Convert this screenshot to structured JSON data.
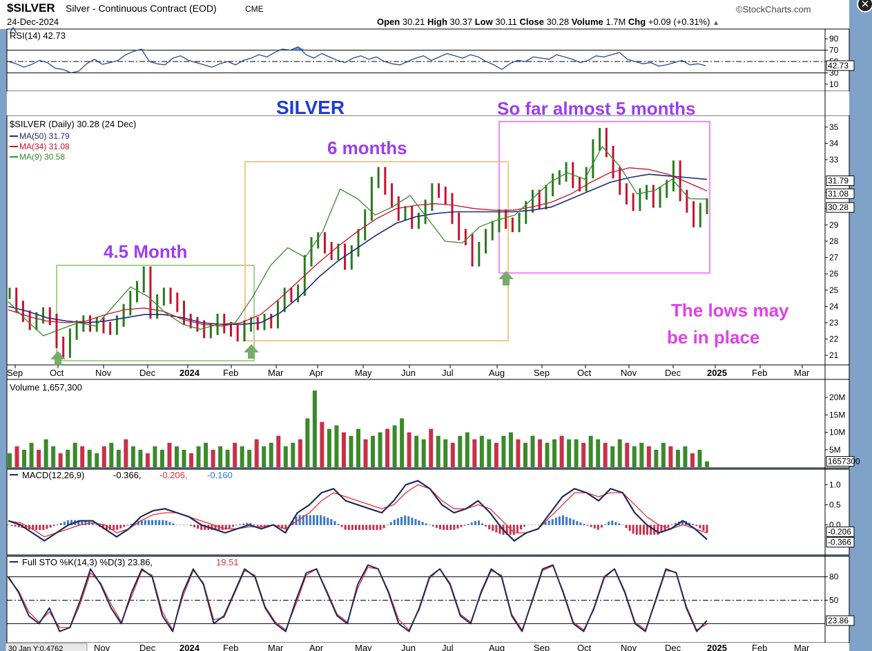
{
  "header": {
    "symbol": "$SILVER",
    "name": "Silver - Continuous Contract (EOD)",
    "exchange": "CME",
    "copyright": "©StockCharts.com",
    "date": "24-Dec-2024",
    "open_label": "Open",
    "open": "30.21",
    "high_label": "High",
    "high": "30.37",
    "low_label": "Low",
    "low": "30.11",
    "close_label": "Close",
    "close": "30.28",
    "volume_label": "Volume",
    "volume": "1.7M",
    "chg_label": "Chg",
    "chg": "+0.09 (+0.31%)",
    "chg_arrow": "▲",
    "close_button": "✕"
  },
  "colors": {
    "price_up": "#2a7a1c",
    "price_down": "#c8102e",
    "ma50": "#1f2a7a",
    "ma34": "#c8102e",
    "ma9": "#3a8a2a",
    "volume_up": "#3a8a2a",
    "volume_down": "#c8304a",
    "macd_line": "#1f2a5a",
    "macd_signal": "#e0303a",
    "histogram": "#3a78c8",
    "annotation_text": "#9b3df0",
    "title_text": "#1e3cd8",
    "pink_box": "#f08cf0",
    "orange_box": "#f0c890",
    "green_box": "#a8d090"
  },
  "chart_data": [
    {
      "type": "line",
      "title": "RSI(14) 42.73",
      "legend": [
        {
          "text": "RSI(14) 42.73"
        }
      ],
      "ylim": [
        0,
        100
      ],
      "y_ticks": [
        "90",
        "70",
        "50",
        "30",
        "10"
      ],
      "last_value_label": "42.73",
      "reference_lines": [
        70,
        50,
        30
      ],
      "series": [
        {
          "name": "RSI(14)",
          "values": [
            50,
            46,
            40,
            45,
            52,
            48,
            38,
            36,
            30,
            33,
            46,
            54,
            45,
            48,
            52,
            62,
            68,
            72,
            50,
            46,
            44,
            56,
            60,
            52,
            48,
            44,
            40,
            46,
            50,
            44,
            52,
            56,
            62,
            58,
            66,
            72,
            70,
            76,
            62,
            56,
            64,
            58,
            52,
            48,
            56,
            60,
            54,
            58,
            50,
            46,
            44,
            50,
            56,
            60,
            52,
            58,
            64,
            60,
            56,
            62,
            58,
            50,
            44,
            36,
            46,
            52,
            50,
            58,
            56,
            54,
            62,
            58,
            54,
            48,
            52,
            60,
            58,
            62,
            66,
            54,
            50,
            46,
            48,
            42,
            44,
            48,
            52,
            44,
            46,
            42.73
          ]
        }
      ]
    },
    {
      "type": "line",
      "title": "$SILVER (Daily) 30.28 (24 Dec)",
      "legend": [
        {
          "text": "$SILVER (Daily) 30.28 (24 Dec)"
        },
        {
          "text": "MA(50) 31.79"
        },
        {
          "text": "MA(34) 31.08"
        },
        {
          "text": "MA(9) 30.58"
        }
      ],
      "x_ticks": [
        "Sep",
        "Oct",
        "Nov",
        "Dec",
        "2024",
        "Feb",
        "Mar",
        "Apr",
        "May",
        "Jun",
        "Jul",
        "Aug",
        "Sep",
        "Oct",
        "Nov",
        "Dec",
        "2025",
        "Feb",
        "Mar"
      ],
      "ylim": [
        20.5,
        35.5
      ],
      "y_ticks": [
        "35",
        "34",
        "33",
        "31",
        "30",
        "29",
        "28",
        "27",
        "26",
        "25",
        "24",
        "23",
        "22",
        "21"
      ],
      "last_value_labels": [
        "31.79",
        "31.08",
        "30.28"
      ],
      "series": [
        {
          "name": "$SILVER (Daily)",
          "values": [
            24.8,
            24.0,
            23.4,
            22.9,
            23.3,
            23.6,
            23.2,
            21.8,
            21.2,
            22.3,
            22.8,
            23.1,
            22.8,
            23.0,
            22.7,
            22.6,
            23.1,
            23.8,
            24.6,
            25.2,
            26.1,
            23.6,
            24.4,
            24.8,
            24.5,
            24.0,
            23.2,
            23.0,
            22.8,
            22.4,
            22.6,
            23.2,
            22.7,
            22.5,
            22.2,
            22.8,
            23.0,
            22.9,
            23.2,
            23.0,
            24.0,
            24.8,
            24.6,
            25.0,
            26.8,
            27.9,
            28.2,
            27.6,
            27.2,
            27.5,
            26.6,
            27.4,
            28.4,
            29.6,
            31.6,
            32.2,
            31.2,
            30.4,
            29.6,
            29.8,
            29.1,
            29.4,
            30.2,
            31.2,
            31.0,
            30.6,
            29.4,
            28.4,
            28.1,
            26.8,
            27.6,
            28.4,
            28.9,
            29.6,
            29.1,
            28.9,
            29.4,
            30.1,
            30.8,
            30.3,
            31.1,
            31.8,
            32.0,
            32.5,
            31.6,
            31.4,
            32.2,
            33.9,
            34.6,
            33.5,
            32.2,
            31.2,
            30.6,
            30.2,
            30.9,
            31.1,
            30.4,
            31.0,
            31.4,
            32.6,
            30.8,
            30.1,
            29.2,
            30.0,
            30.28
          ]
        },
        {
          "name": "MA(50)",
          "values": [
            24.0,
            23.7,
            23.3,
            23.1,
            23.0,
            23.1,
            23.3,
            23.5,
            23.5,
            23.3,
            23.0,
            22.9,
            22.9,
            23.0,
            23.6,
            24.6,
            25.8,
            26.8,
            27.6,
            28.4,
            29.1,
            29.5,
            29.7,
            29.8,
            29.8,
            29.8,
            29.8,
            29.9,
            30.1,
            30.6,
            31.1,
            31.6,
            31.9,
            32.1,
            32.0,
            31.9,
            31.79
          ]
        },
        {
          "name": "MA(34)",
          "values": [
            23.8,
            23.4,
            23.1,
            23.0,
            23.1,
            23.5,
            23.8,
            23.9,
            23.7,
            23.2,
            22.9,
            22.8,
            23.0,
            23.5,
            24.5,
            25.6,
            26.7,
            27.7,
            28.6,
            29.4,
            30.0,
            30.2,
            30.3,
            30.2,
            30.0,
            29.9,
            29.9,
            30.1,
            30.4,
            30.9,
            31.6,
            32.2,
            32.5,
            32.4,
            32.1,
            31.6,
            31.08
          ]
        },
        {
          "name": "MA(9)",
          "values": [
            24.3,
            23.2,
            22.2,
            22.6,
            23.0,
            22.8,
            24.0,
            25.2,
            24.6,
            23.6,
            22.9,
            22.6,
            22.9,
            23.0,
            24.6,
            26.5,
            27.6,
            27.0,
            28.6,
            31.2,
            30.6,
            29.6,
            30.1,
            30.8,
            29.4,
            28.0,
            27.9,
            28.9,
            29.3,
            29.6,
            30.6,
            31.6,
            32.2,
            31.8,
            33.8,
            32.6,
            30.9,
            31.1,
            31.8,
            30.6,
            30.58
          ]
        }
      ],
      "annotations": [
        {
          "text": "SILVER"
        },
        {
          "text": "6 months"
        },
        {
          "text": "So far almost 5 months"
        },
        {
          "text": "4.5 Month"
        },
        {
          "text": "The lows may"
        },
        {
          "text": "be in place"
        }
      ]
    },
    {
      "type": "bar",
      "title": "Volume 1,657,300",
      "legend": [
        {
          "text": "Volume 1,657,300"
        }
      ],
      "y_ticks": [
        "20M",
        "15M",
        "10M",
        "5M"
      ],
      "last_value_label": "1657300",
      "values_m": [
        4,
        6,
        5,
        7,
        5,
        8,
        6,
        4,
        5,
        7,
        6,
        5,
        4,
        6,
        7,
        5,
        8,
        6,
        5,
        4,
        6,
        5,
        7,
        6,
        5,
        4,
        6,
        7,
        5,
        6,
        5,
        7,
        6,
        5,
        8,
        6,
        7,
        9,
        6,
        7,
        8,
        14,
        22,
        13,
        11,
        12,
        10,
        9,
        11,
        8,
        9,
        10,
        11,
        12,
        14,
        10,
        9,
        8,
        11,
        9,
        8,
        7,
        9,
        10,
        8,
        9,
        8,
        7,
        9,
        10,
        8,
        7,
        9,
        8,
        7,
        8,
        9,
        8,
        8,
        7,
        9,
        8,
        7,
        6,
        8,
        7,
        6,
        7,
        6,
        5,
        7,
        6,
        5,
        6,
        4,
        5,
        1.66
      ]
    },
    {
      "type": "line",
      "title": "MACD(12,26,9) -0.366, -0.206, -0.160",
      "legend": [
        {
          "text": "MACD(12,26,9)"
        },
        {
          "text": "-0.366,"
        },
        {
          "text": "-0.206,"
        },
        {
          "text": "-0.160"
        }
      ],
      "ylim": [
        -0.7,
        1.3
      ],
      "y_ticks": [
        "1.0",
        "0.5",
        "0.0"
      ],
      "last_value_labels": [
        "-0.206",
        "-0.366"
      ],
      "series": [
        {
          "name": "MACD",
          "values": [
            0.1,
            0.0,
            -0.2,
            -0.4,
            -0.2,
            0.0,
            0.1,
            0.1,
            -0.1,
            -0.3,
            -0.1,
            0.2,
            0.35,
            0.4,
            0.3,
            0.2,
            0.0,
            -0.1,
            -0.2,
            -0.1,
            0.0,
            -0.1,
            0.0,
            -0.2,
            0.3,
            0.5,
            0.8,
            0.9,
            0.6,
            0.5,
            0.4,
            0.3,
            0.6,
            1.0,
            1.1,
            0.9,
            0.5,
            0.3,
            0.4,
            0.6,
            0.3,
            -0.1,
            -0.4,
            -0.2,
            -0.1,
            0.3,
            0.7,
            0.9,
            0.8,
            0.6,
            0.9,
            0.8,
            0.3,
            0.0,
            -0.2,
            -0.1,
            0.1,
            -0.1,
            -0.366
          ]
        },
        {
          "name": "Signal",
          "values": [
            0.1,
            0.05,
            -0.1,
            -0.3,
            -0.2,
            -0.1,
            0.0,
            0.05,
            0.0,
            -0.2,
            -0.1,
            0.1,
            0.25,
            0.3,
            0.3,
            0.2,
            0.1,
            0.0,
            -0.1,
            -0.1,
            -0.05,
            -0.05,
            0.0,
            -0.1,
            0.1,
            0.3,
            0.6,
            0.8,
            0.7,
            0.6,
            0.5,
            0.4,
            0.5,
            0.8,
            1.0,
            0.9,
            0.6,
            0.4,
            0.4,
            0.5,
            0.4,
            0.1,
            -0.2,
            -0.2,
            -0.1,
            0.2,
            0.5,
            0.8,
            0.8,
            0.7,
            0.8,
            0.8,
            0.5,
            0.2,
            0.0,
            -0.1,
            0.0,
            -0.1,
            -0.206
          ]
        }
      ]
    },
    {
      "type": "line",
      "title": "Full STO %K(14,3) %D(3) 23.86, 19.51",
      "legend": [
        {
          "text": "Full STO %K(14,3) %D(3) 23.86,"
        },
        {
          "text": "19.51"
        }
      ],
      "ylim": [
        0,
        100
      ],
      "y_ticks": [
        "80",
        "50"
      ],
      "reference_lines": [
        80,
        50,
        20
      ],
      "last_value_label": "23.86",
      "x_ticks": [
        "Nov",
        "Dec",
        "2024",
        "Feb",
        "Mar",
        "Apr",
        "May",
        "Jun",
        "Jul",
        "Aug",
        "Sep",
        "Oct",
        "Nov",
        "Dec",
        "2025",
        "Feb",
        "Mar"
      ],
      "cursor_readout": "30 Jan Y:0.4762",
      "series": [
        {
          "name": "%K",
          "values": [
            80,
            60,
            30,
            20,
            40,
            10,
            15,
            50,
            90,
            70,
            40,
            20,
            60,
            90,
            80,
            30,
            10,
            60,
            90,
            70,
            20,
            30,
            60,
            90,
            80,
            40,
            20,
            10,
            50,
            85,
            90,
            60,
            30,
            20,
            70,
            95,
            90,
            60,
            20,
            10,
            40,
            80,
            90,
            70,
            30,
            20,
            60,
            90,
            80,
            30,
            10,
            50,
            90,
            95,
            60,
            20,
            10,
            40,
            80,
            90,
            60,
            20,
            10,
            50,
            90,
            85,
            40,
            10,
            23.86
          ]
        },
        {
          "name": "%D",
          "values": [
            78,
            62,
            35,
            22,
            35,
            15,
            15,
            45,
            85,
            72,
            45,
            22,
            55,
            88,
            82,
            35,
            12,
            55,
            88,
            72,
            25,
            28,
            58,
            88,
            82,
            42,
            22,
            12,
            45,
            82,
            90,
            62,
            32,
            22,
            65,
            92,
            90,
            62,
            25,
            12,
            38,
            78,
            90,
            72,
            32,
            22,
            58,
            88,
            82,
            32,
            12,
            48,
            88,
            94,
            62,
            22,
            12,
            38,
            78,
            90,
            62,
            22,
            12,
            48,
            88,
            86,
            42,
            12,
            19.51
          ]
        }
      ]
    }
  ]
}
